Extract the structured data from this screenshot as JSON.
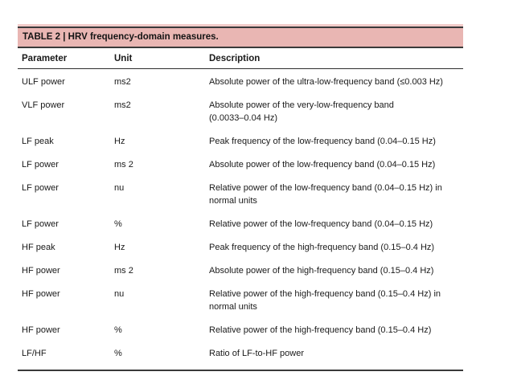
{
  "table": {
    "title": "TABLE 2 | HRV frequency-domain measures.",
    "columns": [
      "Parameter",
      "Unit",
      "Description"
    ],
    "rows": [
      {
        "parameter": "ULF power",
        "unit": "ms2",
        "description": "Absolute power of the ultra-low-frequency band (≤0.003 Hz)"
      },
      {
        "parameter": "VLF power",
        "unit": "ms2",
        "description": "Absolute power of the very-low-frequency band\n(0.0033–0.04 Hz)"
      },
      {
        "parameter": "LF peak",
        "unit": "Hz",
        "description": "Peak frequency of the low-frequency band (0.04–0.15 Hz)"
      },
      {
        "parameter": "LF power",
        "unit": "ms 2",
        "description": "Absolute power of the low-frequency band (0.04–0.15 Hz)"
      },
      {
        "parameter": "LF power",
        "unit": "nu",
        "description": "Relative power of the low-frequency band (0.04–0.15 Hz) in\nnormal units"
      },
      {
        "parameter": "LF power",
        "unit": "%",
        "description": "Relative power of the low-frequency band (0.04–0.15 Hz)"
      },
      {
        "parameter": "HF peak",
        "unit": "Hz",
        "description": "Peak frequency of the high-frequency band (0.15–0.4 Hz)"
      },
      {
        "parameter": "HF power",
        "unit": "ms 2",
        "description": "Absolute power of the high-frequency band (0.15–0.4 Hz)"
      },
      {
        "parameter": "HF power",
        "unit": "nu",
        "description": "Relative power of the high-frequency band (0.15–0.4 Hz) in\nnormal units"
      },
      {
        "parameter": "HF power",
        "unit": "%",
        "description": "Relative power of the high-frequency band (0.15–0.4 Hz)"
      },
      {
        "parameter": "LF/HF",
        "unit": "%",
        "description": "Ratio of LF-to-HF power"
      }
    ]
  },
  "colors": {
    "title_band_fill": "#e9b6b3",
    "title_band_light_edge": "#f2cbc9",
    "rule_dark": "#3a3a3a",
    "text": "#1a1a1a",
    "background": "#ffffff"
  }
}
